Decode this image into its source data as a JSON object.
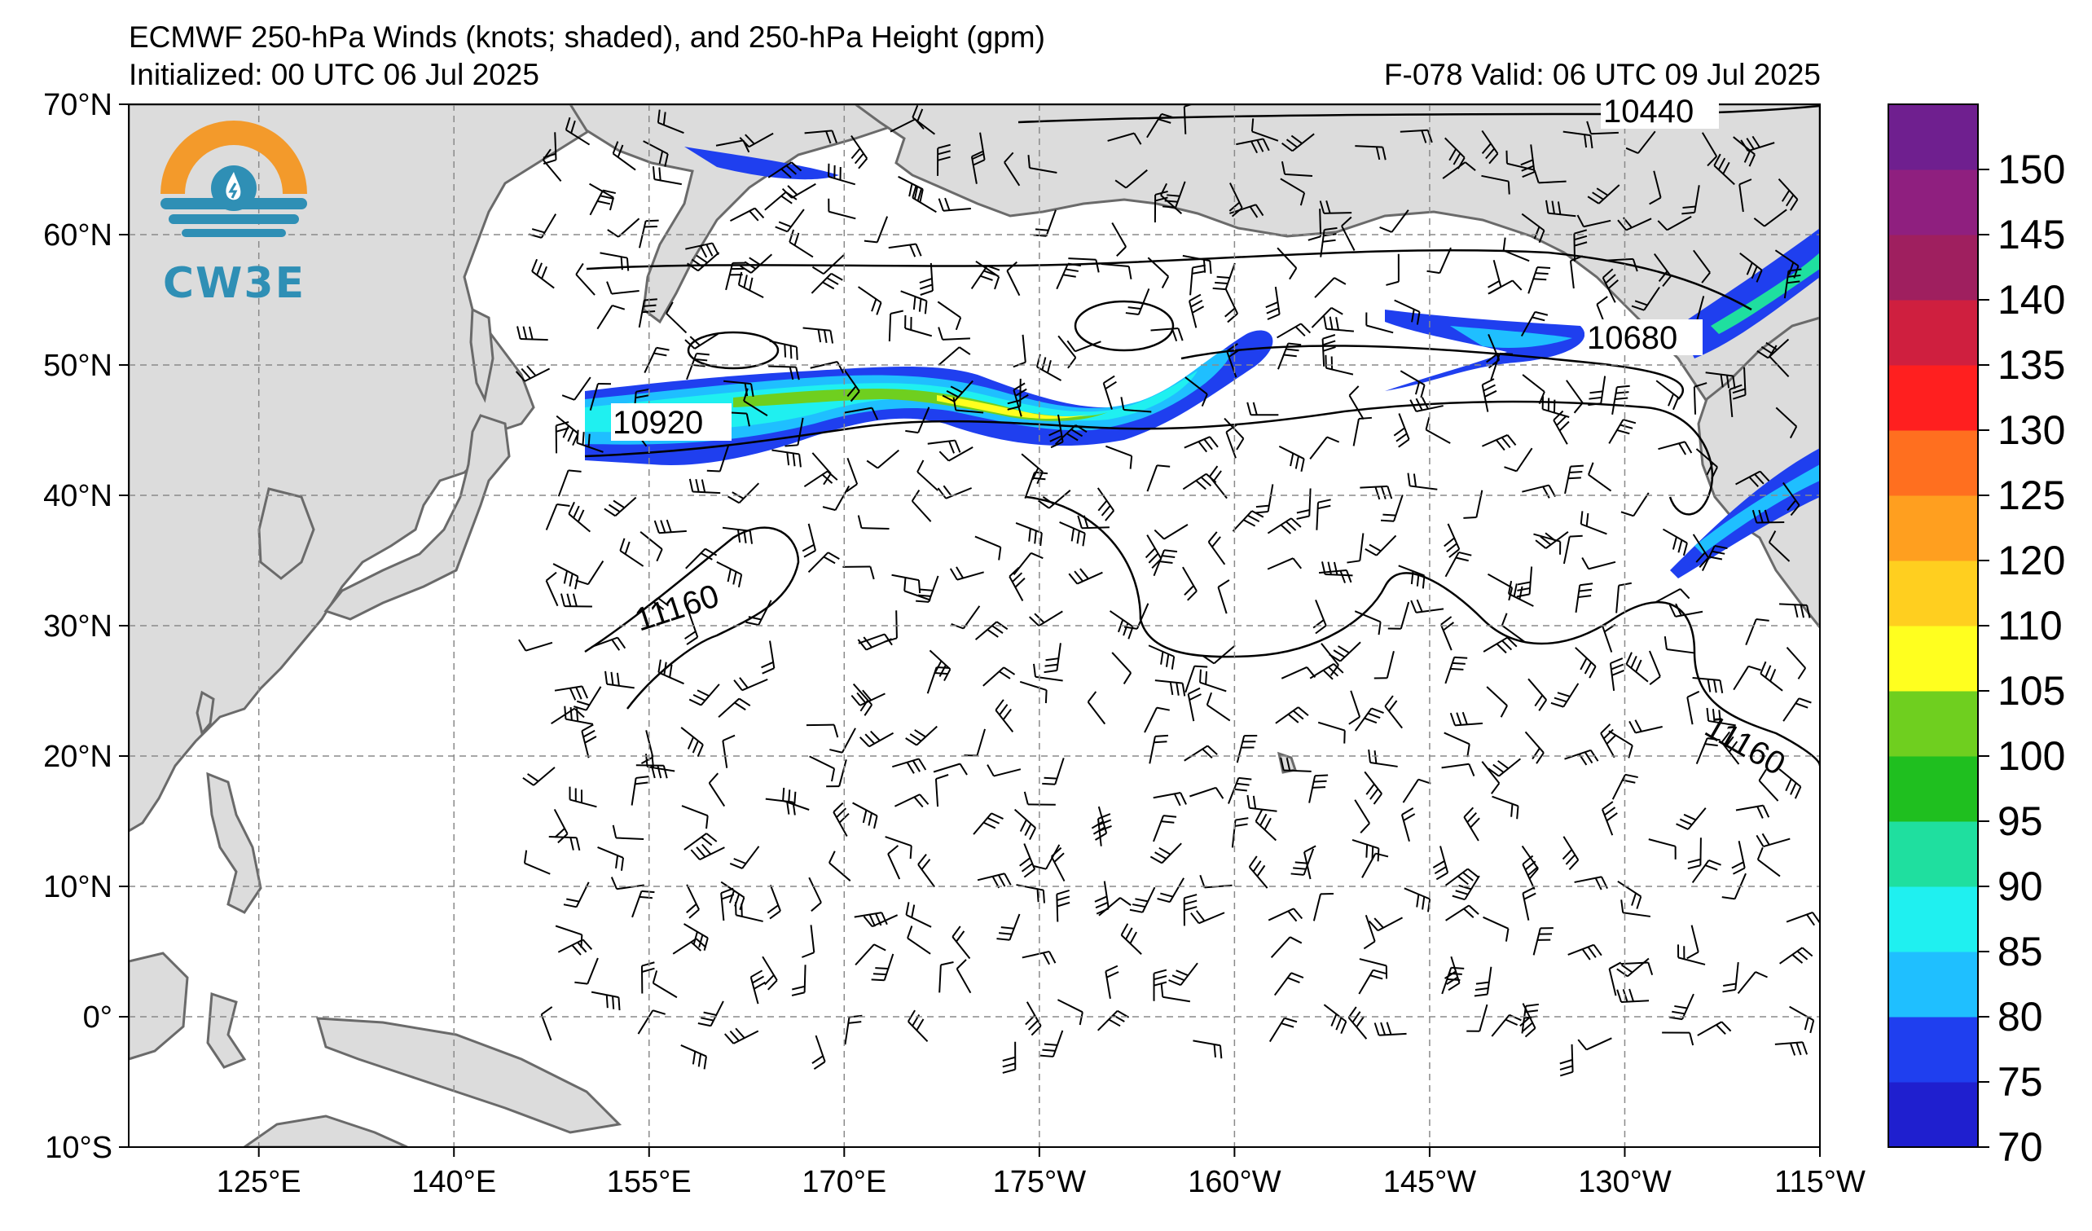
{
  "header": {
    "title": "ECMWF 250-hPa Winds (knots; shaded), and 250-hPa Height (gpm)",
    "initialized": "Initialized: 00 UTC 06 Jul 2025",
    "forecast": "F-078  Valid: 06 UTC 09 Jul 2025"
  },
  "logo": {
    "text": "CW3E",
    "colors": {
      "orange": "#f39a2b",
      "teal": "#2f8fb5"
    }
  },
  "map": {
    "lat_range": [
      -10,
      70
    ],
    "lon_range": [
      115,
      245
    ],
    "lat_labels": [
      "70°N",
      "60°N",
      "50°N",
      "40°N",
      "30°N",
      "20°N",
      "10°N",
      "0°",
      "10°S"
    ],
    "lon_labels": [
      "125°E",
      "140°E",
      "155°E",
      "170°E",
      "175°W",
      "160°W",
      "145°W",
      "130°W",
      "115°W"
    ],
    "gridlines": true,
    "land_color": "#dcdcdc",
    "contour_labels": [
      "10440",
      "10680",
      "10920",
      "11160",
      "11160"
    ]
  },
  "colorbar": {
    "ticks": [
      "70",
      "75",
      "80",
      "85",
      "90",
      "95",
      "100",
      "105",
      "110",
      "120",
      "125",
      "130",
      "135",
      "140",
      "145",
      "150"
    ],
    "colors": [
      "#1f1fcf",
      "#1f3fef",
      "#1fbfff",
      "#1ff0f0",
      "#1fdf9f",
      "#1fbf1f",
      "#6fcf1f",
      "#ffff1f",
      "#ffcf1f",
      "#ff9f1f",
      "#ff6f1f",
      "#ff1f1f",
      "#cf1f3f",
      "#9f1f5f",
      "#8f1f7f",
      "#6f1f8f"
    ]
  }
}
